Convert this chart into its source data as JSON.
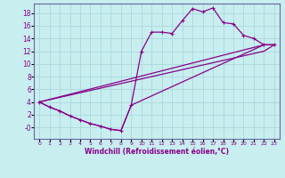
{
  "xlabel": "Windchill (Refroidissement éolien,°C)",
  "bg_color": "#c8eef0",
  "line_color": "#880088",
  "grid_color": "#aad8dc",
  "axis_color": "#666699",
  "xlim": [
    -0.5,
    23.5
  ],
  "ylim": [
    -1.8,
    19.5
  ],
  "xticks": [
    0,
    1,
    2,
    3,
    4,
    5,
    6,
    7,
    8,
    9,
    10,
    11,
    12,
    13,
    14,
    15,
    16,
    17,
    18,
    19,
    20,
    21,
    22,
    23
  ],
  "yticks": [
    0,
    2,
    4,
    6,
    8,
    10,
    12,
    14,
    16,
    18
  ],
  "ytick_labels": [
    "-0",
    "2",
    "4",
    "6",
    "8",
    "10",
    "12",
    "14",
    "16",
    "18"
  ],
  "line1_x": [
    0,
    1,
    2,
    3,
    4,
    5,
    6,
    7,
    8,
    9,
    10,
    11,
    12,
    13,
    14,
    15,
    16,
    17,
    18,
    19,
    20,
    21,
    22,
    23
  ],
  "line1_y": [
    4.0,
    3.2,
    2.6,
    1.8,
    1.2,
    0.6,
    0.2,
    -0.3,
    -0.5,
    3.5,
    12.0,
    15.0,
    15.0,
    14.8,
    16.8,
    18.7,
    18.2,
    18.8,
    16.5,
    16.3,
    14.5,
    14.0,
    13.0,
    13.0
  ],
  "line2_x": [
    0,
    1,
    2,
    3,
    4,
    5,
    6,
    7,
    8,
    9,
    22,
    23
  ],
  "line2_y": [
    4.0,
    3.2,
    2.6,
    1.8,
    1.2,
    0.6,
    0.2,
    -0.3,
    -0.5,
    3.5,
    13.0,
    13.0
  ],
  "line3_x": [
    0,
    22,
    23
  ],
  "line3_y": [
    4.0,
    12.0,
    13.0
  ],
  "line4_x": [
    0,
    22,
    23
  ],
  "line4_y": [
    4.0,
    13.0,
    13.0
  ]
}
